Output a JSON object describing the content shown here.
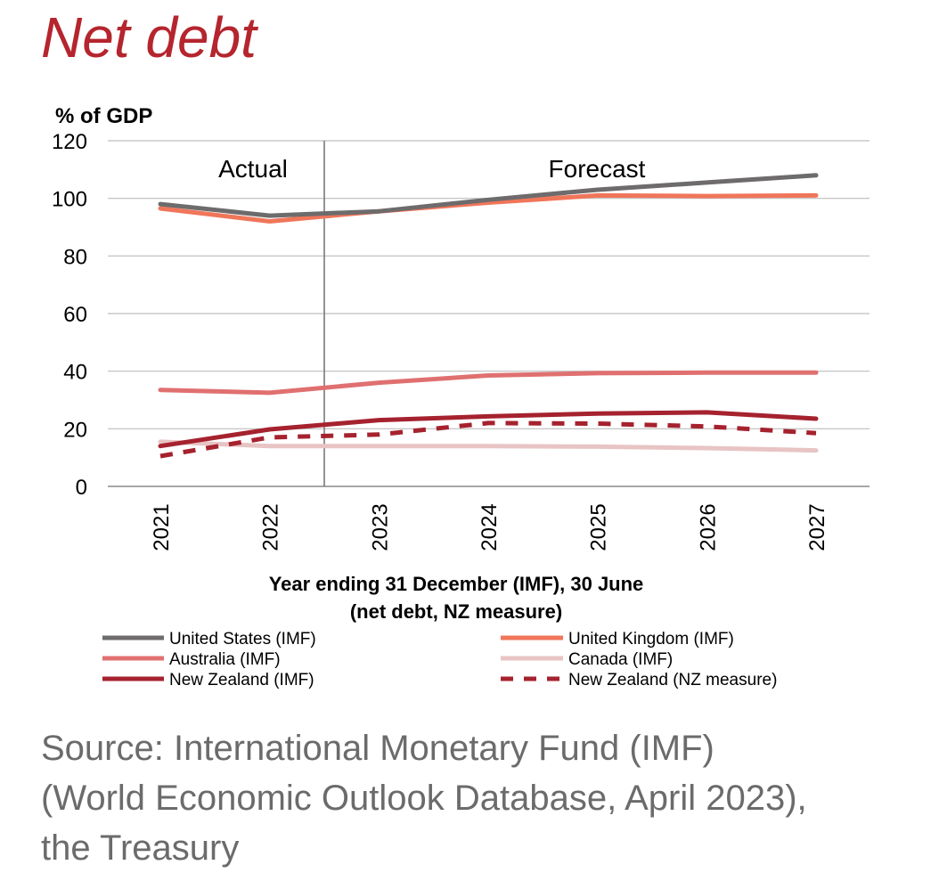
{
  "page": {
    "title": "Net debt",
    "source_lines": [
      "Source: International Monetary Fund (IMF)",
      "(World Economic Outlook Database, April 2023),",
      "the Treasury"
    ]
  },
  "chart_data": {
    "type": "line",
    "title": "Net debt",
    "ylabel": "% of GDP",
    "xlabel_lines": [
      "Year ending 31 December (IMF), 30 June",
      "(net debt, NZ measure)"
    ],
    "ylim": [
      0,
      120
    ],
    "yticks": [
      0,
      20,
      40,
      60,
      80,
      100,
      120
    ],
    "categories": [
      "2021",
      "2022",
      "2023",
      "2024",
      "2025",
      "2026",
      "2027"
    ],
    "period_labels": [
      "Actual",
      "Forecast"
    ],
    "actual_forecast_divider_between": [
      "2022",
      "2023"
    ],
    "series": [
      {
        "name": "United States (IMF)",
        "color": "#6e6b6c",
        "dash": false,
        "values": [
          98,
          94,
          95.5,
          99.5,
          103,
          105.5,
          108
        ]
      },
      {
        "name": "United Kingdom (IMF)",
        "color": "#f0765a",
        "dash": false,
        "values": [
          96.5,
          92,
          95.5,
          98.5,
          101,
          100.8,
          101
        ]
      },
      {
        "name": "Australia (IMF)",
        "color": "#e07070",
        "dash": false,
        "values": [
          33.5,
          32.5,
          36,
          38.5,
          39.3,
          39.5,
          39.5
        ]
      },
      {
        "name": "Canada (IMF)",
        "color": "#e8c4c4",
        "dash": false,
        "values": [
          15.5,
          14,
          14,
          14,
          13.8,
          13.3,
          12.5
        ]
      },
      {
        "name": "New Zealand (IMF)",
        "color": "#a5222e",
        "dash": false,
        "values": [
          14,
          19.8,
          23,
          24.3,
          25.3,
          25.7,
          23.5
        ]
      },
      {
        "name": "New Zealand (NZ measure)",
        "color": "#a5222e",
        "dash": true,
        "values": [
          10.5,
          17,
          18,
          22,
          21.8,
          20.8,
          18.5
        ]
      }
    ]
  }
}
